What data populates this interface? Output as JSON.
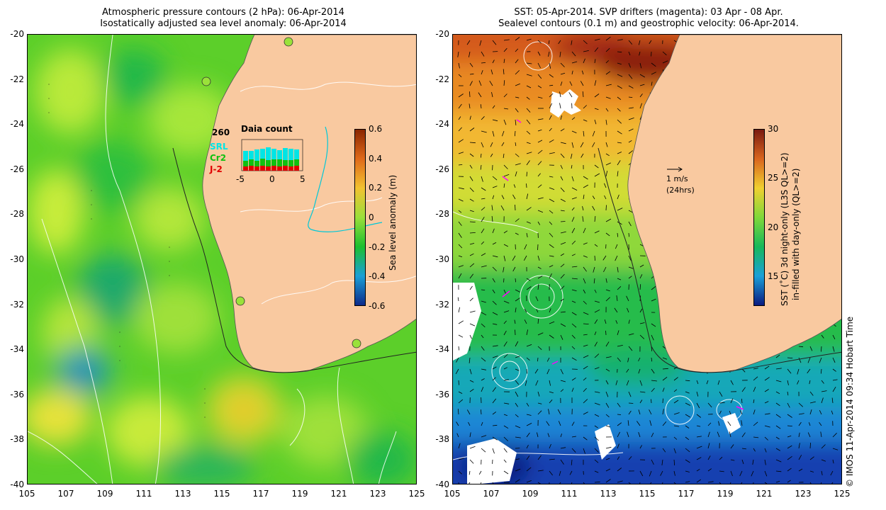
{
  "left_panel": {
    "title_line1": "Atmospheric pressure contours (2 hPa): 06-Apr-2014",
    "title_line2": "Isostatically adjusted sea level anomaly: 06-Apr-2014",
    "colorbar": {
      "label": "Sea level anomaly (m)",
      "ticks": [
        "0.6",
        "0.4",
        "0.2",
        "0",
        "-0.2",
        "-0.4",
        "-0.6"
      ],
      "colors": [
        "#8b2500",
        "#e06a1a",
        "#f2c230",
        "#9adf3b",
        "#1bbf2f",
        "#1a9fd6",
        "#0d2a8a"
      ]
    },
    "inset": {
      "count": "260",
      "title": "Daia count",
      "legend": [
        {
          "label": "SRL",
          "color": "#00e5e5"
        },
        {
          "label": "Cr2",
          "color": "#10c010"
        },
        {
          "label": "J-2",
          "color": "#e00000"
        }
      ],
      "xticks": [
        "-5",
        "0",
        "5"
      ]
    }
  },
  "right_panel": {
    "title_line1": "SST: 05-Apr-2014. SVP drifters (magenta): 03 Apr - 08 Apr.",
    "title_line2": "Sealevel contours (0.1 m) and geostrophic velocity: 06-Apr-2014.",
    "colorbar": {
      "label_line1": "SST (˚C)  3d night-only (L3S QL>=2)",
      "label_line2": "in-filled with day-only (QL>=2)",
      "ticks": [
        "30",
        "25",
        "20",
        "15"
      ],
      "colors": [
        "#7a1a10",
        "#d9651e",
        "#f0d030",
        "#7fd83a",
        "#16b85a",
        "#1aa0d8",
        "#0a1a80"
      ]
    },
    "scale_arrow_label": "1 m/s",
    "scale_arrow_sub": "(24hrs)"
  },
  "axes": {
    "y_ticks": [
      "-20",
      "-22",
      "-24",
      "-26",
      "-28",
      "-30",
      "-32",
      "-34",
      "-36",
      "-38",
      "-40"
    ],
    "x_ticks": [
      "105",
      "107",
      "109",
      "111",
      "113",
      "115",
      "117",
      "119",
      "121",
      "123",
      "125"
    ]
  },
  "footer": "© IMOS 11-Apr-2014 09:34 Hobart Time",
  "colors": {
    "land": "#f9c9a0",
    "drifter": "#ff00ff"
  }
}
